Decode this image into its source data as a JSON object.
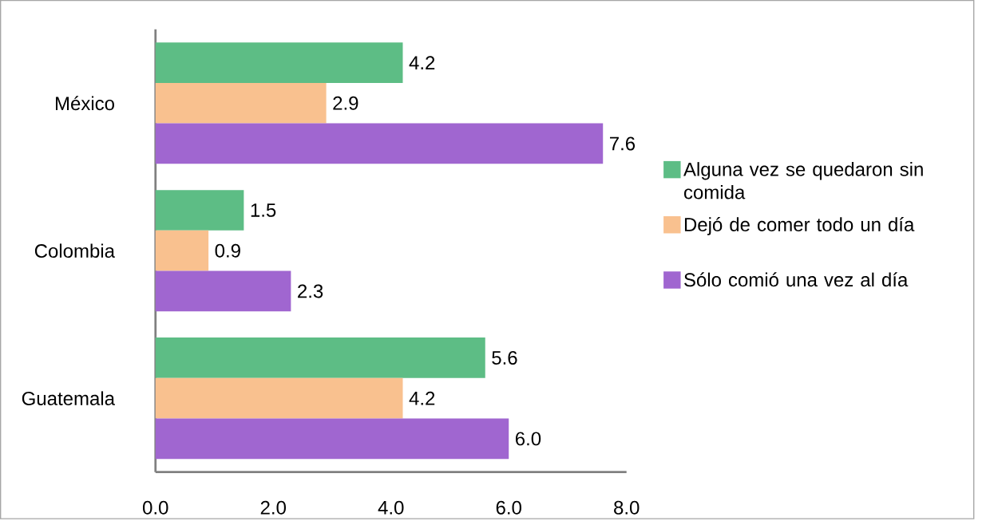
{
  "chart_data": {
    "type": "bar",
    "orientation": "horizontal",
    "categories": [
      "México",
      "Colombia",
      "Guatemala"
    ],
    "series": [
      {
        "name": "Alguna vez se quedaron sin comida",
        "color": "#5dbd85",
        "values": [
          4.2,
          1.5,
          5.6
        ],
        "value_labels": [
          "4.2",
          "1.5",
          "5.6"
        ]
      },
      {
        "name": "Dejó de comer todo un día",
        "color": "#f9c18f",
        "values": [
          2.9,
          0.9,
          4.2
        ],
        "value_labels": [
          "2.9",
          "0.9",
          "4.2"
        ]
      },
      {
        "name": "Sólo comió una vez al día",
        "color": "#a066d0",
        "values": [
          7.6,
          2.3,
          6.0
        ],
        "value_labels": [
          "7.6",
          "2.3",
          "6.0"
        ]
      }
    ],
    "xlim": [
      0,
      8
    ],
    "xticks": [
      {
        "value": 0,
        "label": "0.0"
      },
      {
        "value": 2,
        "label": "2.0"
      },
      {
        "value": 4,
        "label": "4.0"
      },
      {
        "value": 6,
        "label": "6.0"
      },
      {
        "value": 8,
        "label": "8.0"
      }
    ],
    "legend": "right"
  }
}
